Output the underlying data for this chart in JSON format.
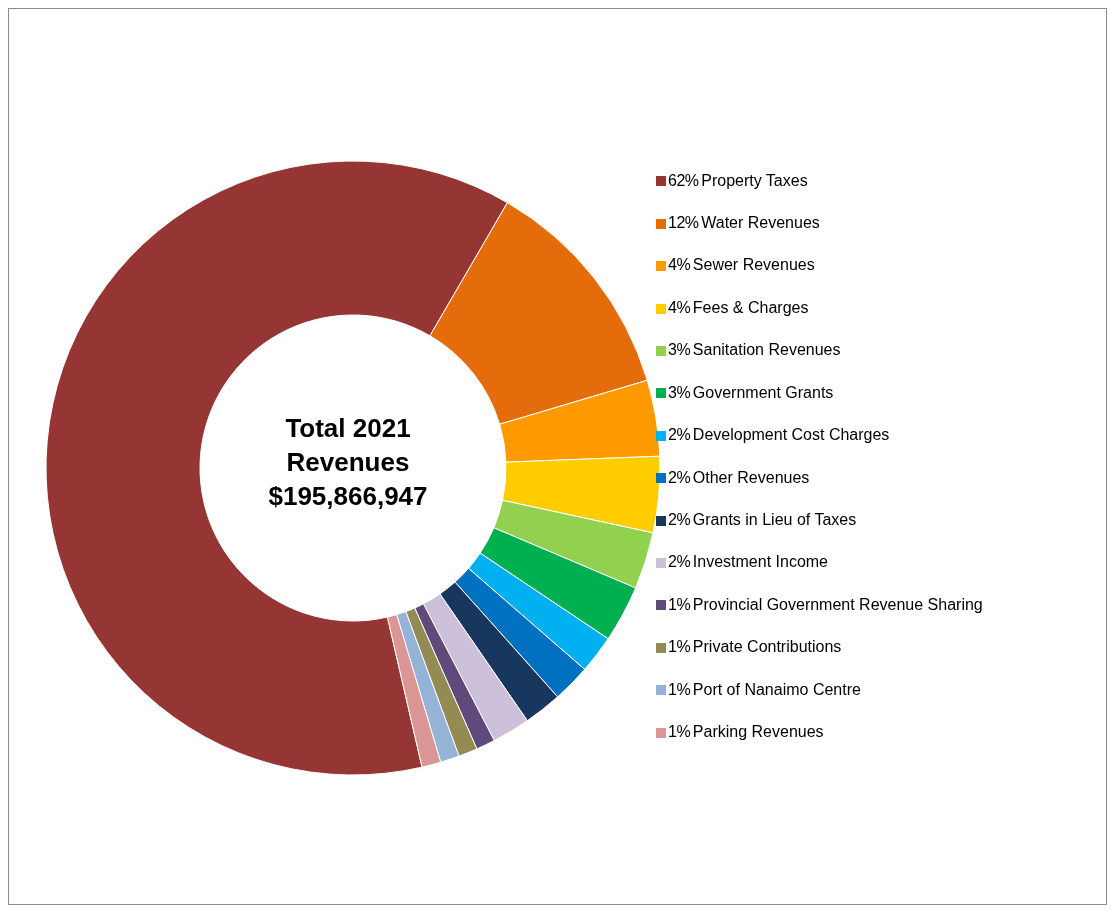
{
  "chart_data": {
    "type": "donut",
    "title": "Total 2021 Revenues $195,866,947",
    "categories": [
      "Property Taxes",
      "Water Revenues",
      "Sewer Revenues",
      "Fees & Charges",
      "Sanitation Revenues",
      "Government Grants",
      "Development Cost Charges",
      "Other Revenues",
      "Grants in Lieu of Taxes",
      "Investment Income",
      "Provincial Government Revenue Sharing",
      "Private Contributions",
      "Port of Nanaimo Centre",
      "Parking Revenues"
    ],
    "values": [
      62,
      12,
      4,
      4,
      3,
      3,
      2,
      2,
      2,
      2,
      1,
      1,
      1,
      1
    ],
    "value_labels": [
      "62%",
      "12%",
      "4%",
      "4%",
      "3%",
      "3%",
      "2%",
      "2%",
      "2%",
      "2%",
      "1%",
      "1%",
      "1%",
      "1%"
    ],
    "colors": [
      "#963634",
      "#e46c0a",
      "#ff9900",
      "#ffcc00",
      "#92d050",
      "#00b050",
      "#00b0f0",
      "#0070c0",
      "#17375e",
      "#ccc0da",
      "#604a7b",
      "#948a54",
      "#95b3d7",
      "#da9694"
    ],
    "legend": "right"
  }
}
